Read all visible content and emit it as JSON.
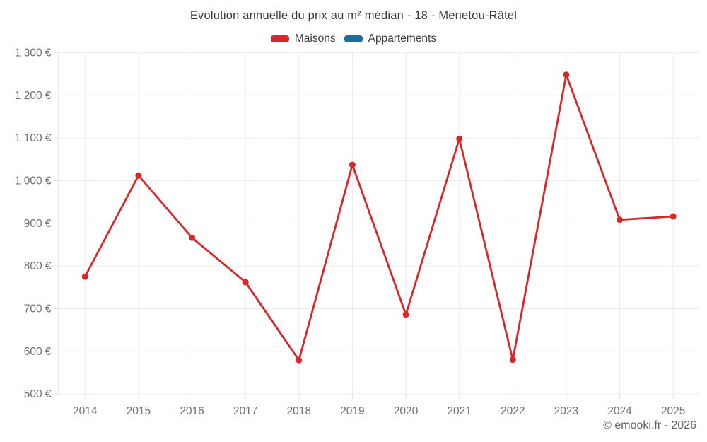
{
  "title": "Evolution annuelle du prix au m² médian - 18 - Menetou-Râtel",
  "legend": {
    "items": [
      {
        "label": "Maisons",
        "color": "#d62828"
      },
      {
        "label": "Appartements",
        "color": "#1a6e9e"
      }
    ]
  },
  "footer": {
    "watermark": "© emooki.fr - 2026"
  },
  "colors": {
    "background": "#ffffff",
    "grid": "#ececec",
    "tick": "#dedede",
    "axis_label": "#6f6f6f",
    "title_text": "#3c3c3c",
    "watermark_text": "#646464",
    "maisons": "#d62828",
    "appartements": "#1a6e9e"
  },
  "chart_data": {
    "type": "line",
    "title": "Evolution annuelle du prix au m² médian - 18 - Menetou-Râtel",
    "x": [
      "2014",
      "2015",
      "2016",
      "2017",
      "2018",
      "2019",
      "2020",
      "2021",
      "2022",
      "2023",
      "2024",
      "2025"
    ],
    "series": [
      {
        "name": "Maisons",
        "color": "#d62828",
        "values": [
          775,
          1012,
          866,
          762,
          579,
          1037,
          686,
          1098,
          580,
          1248,
          908,
          916
        ]
      },
      {
        "name": "Appartements",
        "color": "#1a6e9e",
        "values": []
      }
    ],
    "xlabel": "",
    "ylabel": "",
    "y_unit": "€",
    "ylim": [
      500,
      1300
    ],
    "y_ticks": [
      {
        "value": 1300,
        "label": "1 300 €"
      },
      {
        "value": 1200,
        "label": "1 200 €"
      },
      {
        "value": 1100,
        "label": "1 100 €"
      },
      {
        "value": 1000,
        "label": "1 000 €"
      },
      {
        "value": 900,
        "label": "900 €"
      },
      {
        "value": 800,
        "label": "800 €"
      },
      {
        "value": 700,
        "label": "700 €"
      },
      {
        "value": 600,
        "label": "600 €"
      },
      {
        "value": 500,
        "label": "500 €"
      }
    ],
    "grid": true,
    "legend_position": "top",
    "marker_radius": 4.5,
    "line_width": 2.8
  }
}
